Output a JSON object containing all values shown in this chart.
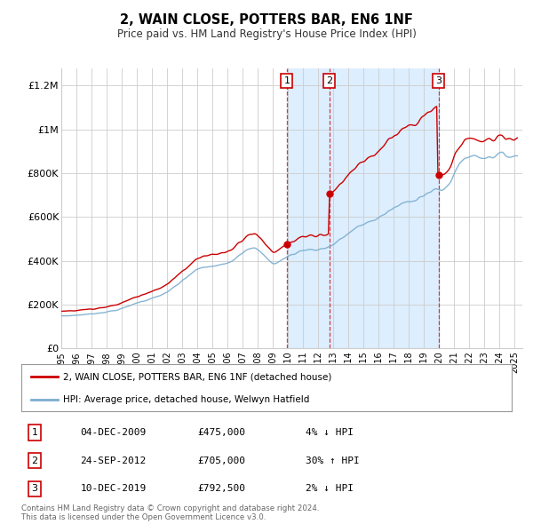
{
  "title": "2, WAIN CLOSE, POTTERS BAR, EN6 1NF",
  "subtitle": "Price paid vs. HM Land Registry's House Price Index (HPI)",
  "xlim": [
    1995.0,
    2025.5
  ],
  "ylim": [
    0,
    1280000
  ],
  "yticks": [
    0,
    200000,
    400000,
    600000,
    800000,
    1000000,
    1200000
  ],
  "ytick_labels": [
    "£0",
    "£200K",
    "£400K",
    "£600K",
    "£800K",
    "£1M",
    "£1.2M"
  ],
  "xticks": [
    1995,
    1996,
    1997,
    1998,
    1999,
    2000,
    2001,
    2002,
    2003,
    2004,
    2005,
    2006,
    2007,
    2008,
    2009,
    2010,
    2011,
    2012,
    2013,
    2014,
    2015,
    2016,
    2017,
    2018,
    2019,
    2020,
    2021,
    2022,
    2023,
    2024,
    2025
  ],
  "sale_dates": [
    2009.92,
    2012.73,
    2019.95
  ],
  "sale_prices": [
    475000,
    705000,
    792500
  ],
  "sale_labels": [
    "1",
    "2",
    "3"
  ],
  "shaded_region": [
    2009.92,
    2019.95
  ],
  "legend_line1": "2, WAIN CLOSE, POTTERS BAR, EN6 1NF (detached house)",
  "legend_line2": "HPI: Average price, detached house, Welwyn Hatfield",
  "table_rows": [
    [
      "1",
      "04-DEC-2009",
      "£475,000",
      "4% ↓ HPI"
    ],
    [
      "2",
      "24-SEP-2012",
      "£705,000",
      "30% ↑ HPI"
    ],
    [
      "3",
      "10-DEC-2019",
      "£792,500",
      "2% ↓ HPI"
    ]
  ],
  "footer1": "Contains HM Land Registry data © Crown copyright and database right 2024.",
  "footer2": "This data is licensed under the Open Government Licence v3.0.",
  "red_color": "#cc0000",
  "blue_color": "#7aadcf",
  "shaded_color": "#ddeeff",
  "grid_color": "#cccccc",
  "bg_color": "#ffffff"
}
